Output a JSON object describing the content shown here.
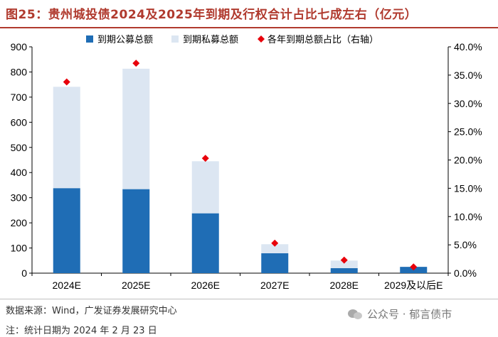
{
  "title": "图25：贵州城投债2024及2025年到期及行权合计占比七成左右（亿元）",
  "source": "数据来源：Wind，广发证券发展研究中心",
  "note": "注：统计日期为 2024 年 2 月 23 日",
  "watermark": "公众号 · 郁言债市",
  "colors": {
    "public": "#1f6db5",
    "private": "#dce6f2",
    "ratio": "#e8000b",
    "title": "#b03a2e"
  },
  "chart_data": {
    "type": "bar",
    "stacked": true,
    "categories": [
      "2024E",
      "2025E",
      "2026E",
      "2027E",
      "2028E",
      "2029及以后E"
    ],
    "series": [
      {
        "name": "到期公募总额",
        "type": "bar",
        "axis": "left",
        "values": [
          338,
          334,
          238,
          79,
          20,
          25
        ]
      },
      {
        "name": "到期私募总额",
        "type": "bar",
        "axis": "left",
        "values": [
          403,
          479,
          207,
          36,
          30,
          0
        ]
      },
      {
        "name": "各年到期总额占比（右轴）",
        "type": "scatter",
        "axis": "right",
        "marker": "diamond",
        "values": [
          33.8,
          37.1,
          20.3,
          5.3,
          2.3,
          1.1
        ]
      }
    ],
    "y_left": {
      "min": 0,
      "max": 900,
      "ticks": [
        0,
        100,
        200,
        300,
        400,
        500,
        600,
        700,
        800,
        900
      ]
    },
    "y_right": {
      "min": 0,
      "max": 40,
      "ticks": [
        "0.0%",
        "5.0%",
        "10.0%",
        "15.0%",
        "20.0%",
        "25.0%",
        "30.0%",
        "35.0%",
        "40.0%"
      ]
    },
    "legend_position": "top"
  }
}
